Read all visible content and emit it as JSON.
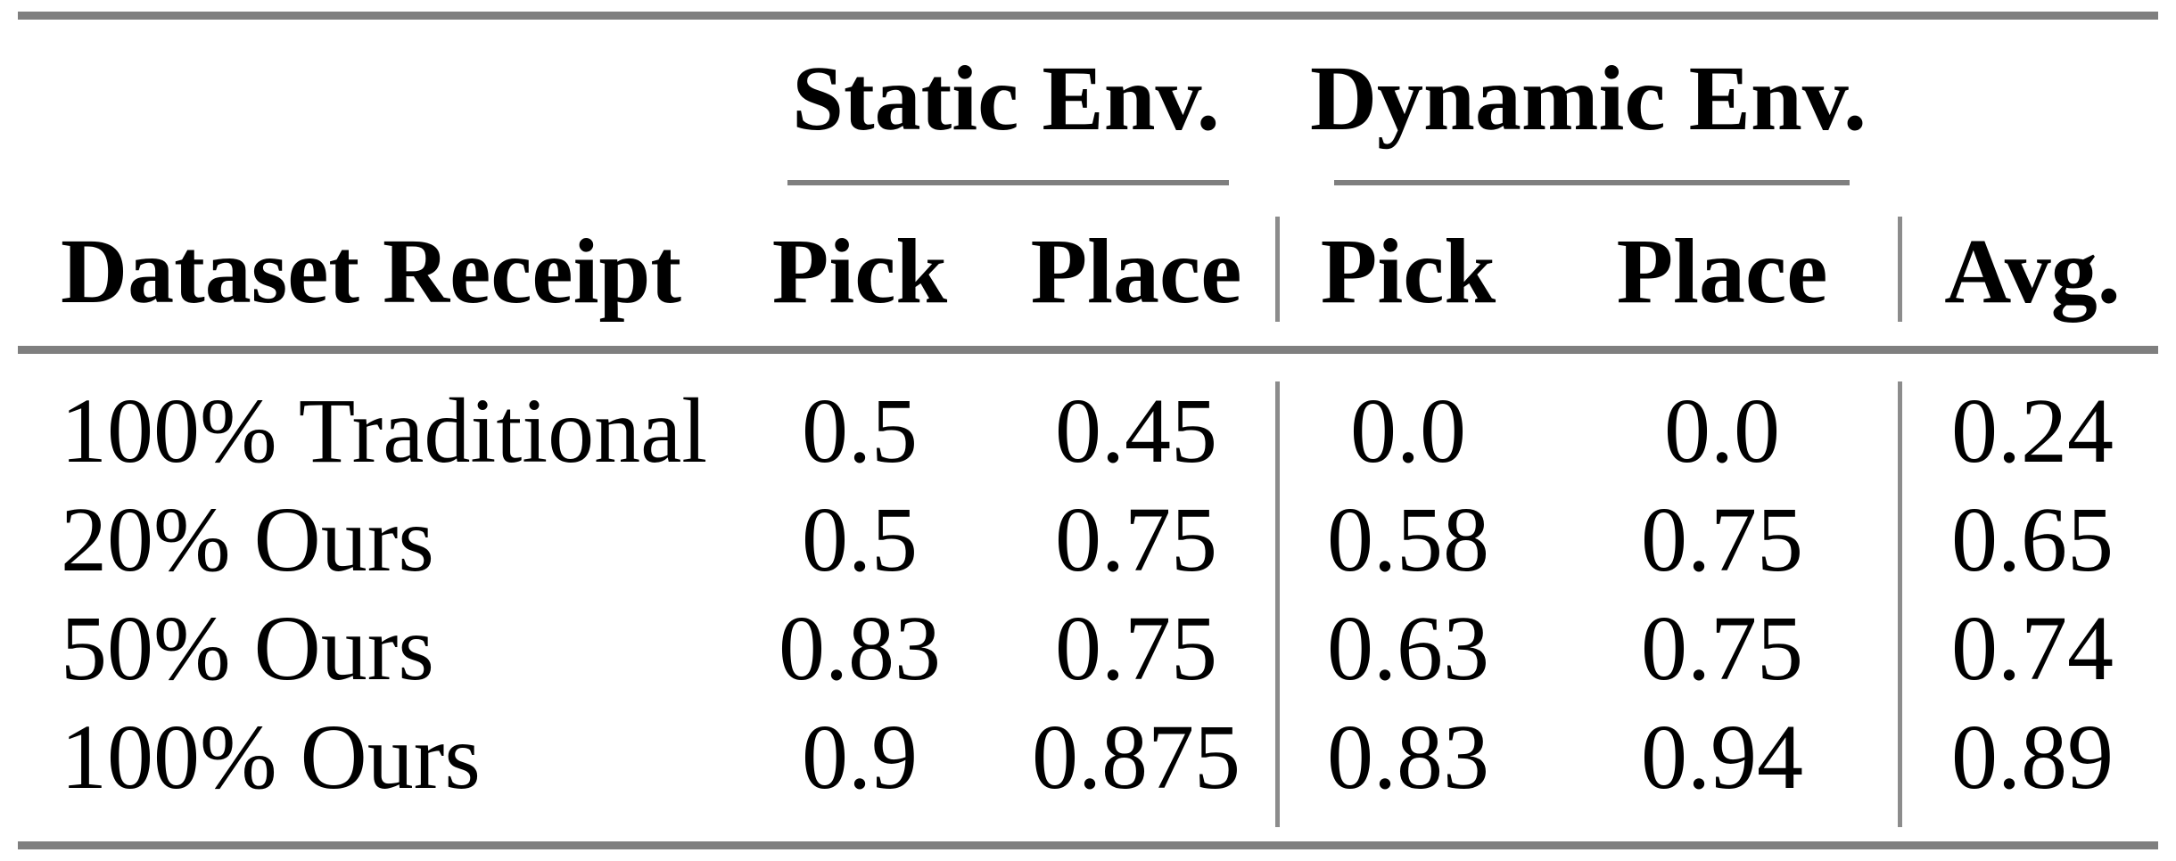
{
  "table": {
    "groups": [
      {
        "label": "Static Env."
      },
      {
        "label": "Dynamic Env."
      }
    ],
    "columns": {
      "row_header": "Dataset Receipt",
      "headers": [
        "Pick",
        "Place",
        "Pick",
        "Place",
        "Avg."
      ]
    },
    "rows": [
      {
        "label": "100% Traditional",
        "values": [
          "0.5",
          "0.45",
          "0.0",
          "0.0",
          "0.24"
        ]
      },
      {
        "label": "20% Ours",
        "values": [
          "0.5",
          "0.75",
          "0.58",
          "0.75",
          "0.65"
        ]
      },
      {
        "label": "50% Ours",
        "values": [
          "0.83",
          "0.75",
          "0.63",
          "0.75",
          "0.74"
        ]
      },
      {
        "label": "100% Ours",
        "values": [
          "0.9",
          "0.875",
          "0.83",
          "0.94",
          "0.89"
        ]
      }
    ],
    "colors": {
      "rule": "#7f7f7f",
      "vline": "#8c8c8c",
      "text": "#000000",
      "background": "#ffffff"
    }
  }
}
